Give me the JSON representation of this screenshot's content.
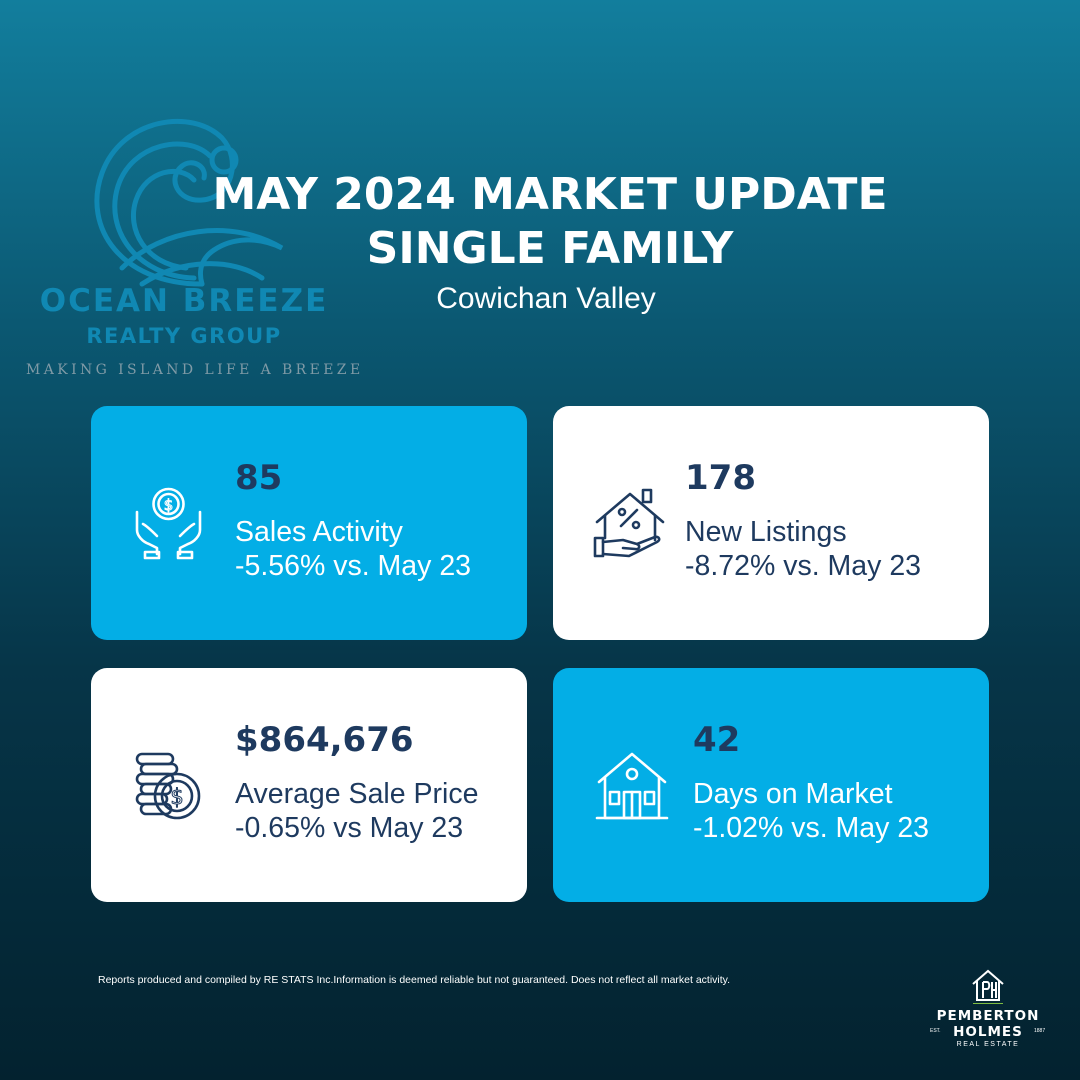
{
  "logo": {
    "name": "OCEAN BREEZE",
    "sub": "REALTY GROUP",
    "tagline": "MAKING ISLAND LIFE A BREEZE"
  },
  "header": {
    "title_line1": "MAY 2024 MARKET UPDATE",
    "title_line2": "SINGLE FAMILY",
    "region": "Cowichan Valley"
  },
  "cards": [
    {
      "value": "85",
      "label": "Sales Activity",
      "change": "-5.56% vs. May 23",
      "icon": "hands-coin-icon",
      "style": "blue"
    },
    {
      "value": "178",
      "label": "New Listings",
      "change": "-8.72% vs. May 23",
      "icon": "house-percent-icon",
      "style": "white"
    },
    {
      "value": "$864,676",
      "label": "Average Sale Price",
      "change": "-0.65% vs May 23",
      "icon": "coin-stack-icon",
      "style": "white"
    },
    {
      "value": "42",
      "label": "Days on Market",
      "change": "-1.02% vs. May 23",
      "icon": "house-icon",
      "style": "blue"
    }
  ],
  "footer": {
    "disclaimer": "Reports produced and compiled by RE  STATS Inc.Information is deemed reliable but not guaranteed. Does not reflect all market activity.",
    "brand_line1": "PEMBERTON",
    "brand_line2": "HOLMES",
    "brand_est": "EST.",
    "brand_year": "1887",
    "brand_sub": "REAL ESTATE"
  },
  "colors": {
    "accent_blue": "#03aee6",
    "card_text": "#1e3a5f",
    "logo_blue": "#1088b3"
  }
}
